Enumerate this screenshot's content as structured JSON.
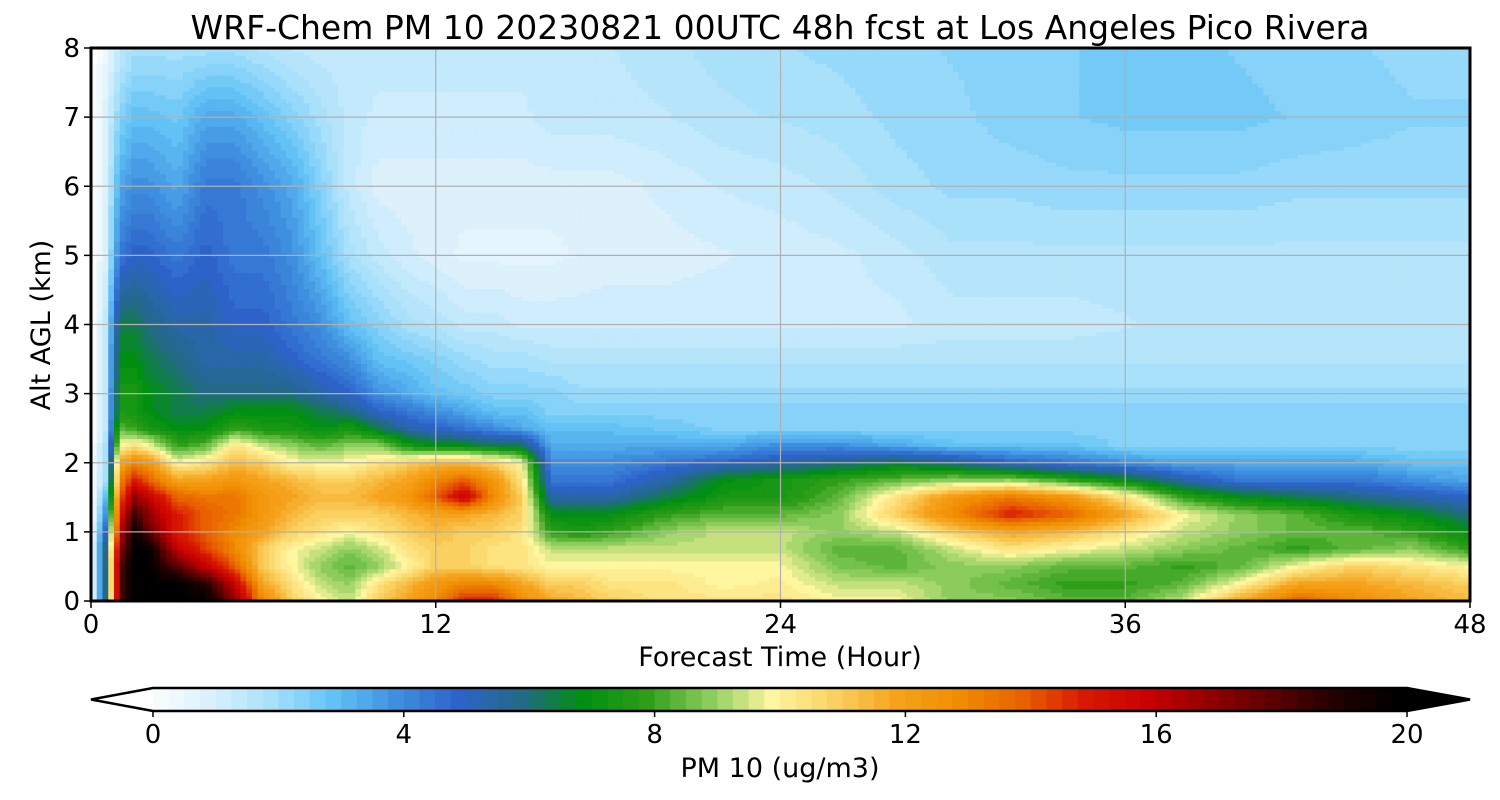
{
  "chart_data": {
    "type": "heatmap",
    "title": "WRF-Chem PM 10  20230821 00UTC 48h fcst at Los Angeles Pico Rivera",
    "xlabel": "Forecast Time (Hour)",
    "ylabel": "Alt AGL (km)",
    "xlim": [
      0,
      48
    ],
    "ylim": [
      0,
      8
    ],
    "xticks": [
      0,
      12,
      24,
      36,
      48
    ],
    "yticks": [
      0,
      1,
      2,
      3,
      4,
      5,
      6,
      7,
      8
    ],
    "grid": true,
    "x": [
      0,
      0.5,
      1,
      1.5,
      2,
      3,
      4,
      5,
      6,
      7,
      8,
      9,
      10,
      11,
      12,
      13,
      14,
      15,
      16,
      17,
      18,
      20,
      22,
      24,
      26,
      28,
      30,
      32,
      34,
      36,
      38,
      40,
      42,
      44,
      46,
      48
    ],
    "y": [
      0,
      0.25,
      0.5,
      0.75,
      1,
      1.25,
      1.5,
      1.75,
      2,
      2.25,
      2.5,
      2.75,
      3,
      3.5,
      4,
      5,
      6,
      7,
      8
    ],
    "z": [
      [
        0,
        6,
        18,
        20,
        20,
        20,
        20,
        17,
        13,
        11,
        10,
        9.5,
        11,
        12,
        13,
        15,
        15,
        13,
        12,
        11.5,
        11,
        10.5,
        10.5,
        10.5,
        10,
        10,
        9,
        9,
        8.5,
        8.5,
        9.5,
        12,
        14,
        13,
        12,
        11.5
      ],
      [
        0,
        6,
        18,
        20,
        20,
        20,
        19,
        16,
        12,
        10.5,
        9.5,
        9,
        10.5,
        11.5,
        12.5,
        13,
        13,
        12,
        11,
        11,
        10.5,
        10.5,
        10,
        10.2,
        9.5,
        9.5,
        9,
        8.5,
        8,
        8,
        8.5,
        10,
        12,
        12,
        11.5,
        11
      ],
      [
        0,
        6,
        18,
        20,
        20,
        18,
        16,
        14,
        11,
        10,
        9,
        8.5,
        9,
        10,
        11,
        11,
        10.5,
        10.5,
        10,
        10,
        10,
        10,
        10,
        10,
        8.8,
        8.5,
        9,
        9,
        8.5,
        8.5,
        8,
        8.5,
        10,
        11,
        10.5,
        10
      ],
      [
        0,
        6,
        17,
        20,
        20,
        16,
        14.5,
        13,
        11,
        10,
        9.5,
        9,
        9.5,
        10.5,
        11,
        11,
        10.5,
        10.5,
        9.5,
        9.5,
        9.5,
        9.5,
        9.5,
        9.5,
        8.5,
        8.5,
        9.5,
        10.5,
        10,
        9.5,
        9,
        8.5,
        8,
        8.5,
        9,
        8
      ],
      [
        0,
        5,
        16,
        19.5,
        18,
        15,
        14,
        13,
        12,
        11,
        10.5,
        10,
        10.5,
        11,
        11.5,
        11,
        11,
        10.5,
        8,
        7.5,
        8,
        9,
        9.5,
        9.5,
        9,
        9.5,
        11,
        12,
        11.5,
        10.5,
        9.5,
        9,
        8.5,
        8.5,
        8,
        7
      ],
      [
        0,
        4,
        15,
        18.5,
        17,
        15,
        14,
        13.5,
        12.5,
        11.5,
        11,
        11,
        11,
        11.5,
        12,
        12,
        11.5,
        11,
        7,
        7,
        7,
        8,
        8.5,
        8.5,
        9,
        11,
        13,
        15,
        14,
        12,
        10,
        9,
        8.5,
        7.5,
        7,
        6
      ],
      [
        0,
        3,
        14,
        17,
        16,
        14,
        13.5,
        13.5,
        12.5,
        12,
        11.5,
        11.5,
        12,
        12.5,
        14,
        16,
        13,
        11,
        5.5,
        5.5,
        5.5,
        6.5,
        7.5,
        7.5,
        8.5,
        10.5,
        12.5,
        13.5,
        12.5,
        10.5,
        8,
        7,
        6.5,
        6,
        5.5,
        5
      ],
      [
        0,
        2,
        13,
        15,
        14,
        12,
        12,
        12.5,
        12,
        11.5,
        11,
        11,
        11.5,
        12,
        13,
        14,
        12.5,
        10.5,
        4.5,
        4.5,
        4.5,
        5.5,
        7,
        7.5,
        8,
        8.5,
        9,
        9,
        8,
        7,
        5.5,
        4.5,
        4.5,
        4.5,
        4,
        3.5
      ],
      [
        0,
        2,
        12,
        13,
        12.5,
        10,
        10.5,
        11.5,
        11,
        10,
        10,
        10,
        10.5,
        11,
        11.5,
        11.5,
        11,
        10,
        4,
        4,
        4,
        4.5,
        5,
        5.5,
        6,
        6.5,
        6,
        5,
        4.5,
        4,
        3.5,
        3.5,
        3.5,
        3.5,
        3,
        3
      ],
      [
        0,
        2,
        10,
        10.5,
        10,
        8,
        8.5,
        10.5,
        9.5,
        9,
        8.5,
        9,
        9,
        7.5,
        7,
        7,
        6.5,
        6.5,
        3.5,
        3.5,
        3.5,
        3.5,
        3.5,
        4,
        4,
        3.5,
        3,
        3,
        3,
        2.5,
        2.5,
        2.5,
        2.5,
        2.5,
        2.5,
        2.5
      ],
      [
        0,
        1.5,
        8.5,
        8,
        7.5,
        7,
        7,
        8,
        7.5,
        7.5,
        7,
        7.5,
        6.5,
        5.5,
        5,
        4.5,
        4,
        3.5,
        3,
        3,
        3,
        2.8,
        2.5,
        2.5,
        2.5,
        2.5,
        2.5,
        2.5,
        2.5,
        2.5,
        2.5,
        2.5,
        2.5,
        2.5,
        2.5,
        2.5
      ],
      [
        0,
        1.5,
        7.5,
        7.5,
        7,
        6.5,
        6.5,
        7,
        7,
        7,
        6.5,
        6,
        5,
        4.5,
        4,
        3.5,
        3,
        3,
        2.5,
        2.5,
        2.5,
        2.5,
        2.5,
        2.5,
        2.5,
        2.5,
        2.5,
        2.5,
        2.5,
        2.5,
        2.5,
        2.5,
        2.5,
        2.5,
        2.5,
        2.5
      ],
      [
        0,
        1.5,
        7.5,
        7.5,
        7,
        6.5,
        6,
        6,
        6,
        6,
        5.5,
        5,
        4,
        3.5,
        3,
        2.8,
        2.5,
        2.5,
        2.5,
        2.2,
        2.2,
        2.2,
        2.2,
        2.2,
        2.2,
        2.2,
        2.2,
        2.2,
        2.2,
        2.2,
        2.2,
        2.2,
        2.2,
        2.2,
        2.2,
        2.2
      ],
      [
        0,
        1.5,
        7,
        7,
        6.5,
        6,
        5.5,
        5.5,
        5.5,
        5,
        4.5,
        4,
        3,
        2.8,
        2.5,
        2.2,
        2,
        2,
        1.8,
        1.8,
        1.8,
        1.8,
        1.8,
        1.8,
        1.8,
        1.8,
        1.8,
        1.8,
        1.8,
        1.8,
        1.8,
        1.8,
        1.8,
        1.8,
        1.8,
        1.8
      ],
      [
        0,
        1.5,
        6.5,
        6.5,
        6,
        5.5,
        5.5,
        5,
        5,
        4.5,
        4,
        3,
        2.5,
        2,
        1.8,
        1.5,
        1.5,
        1.3,
        1.3,
        1.3,
        1.3,
        1.3,
        1.3,
        1.3,
        1.3,
        1.3,
        1.5,
        1.5,
        1.5,
        1.6,
        1.7,
        1.8,
        1.8,
        1.8,
        1.8,
        1.8
      ],
      [
        0,
        1,
        4.5,
        5,
        5,
        4.5,
        5,
        4.5,
        4.5,
        4,
        3,
        2,
        1.5,
        1.2,
        1,
        0.8,
        0.8,
        0.8,
        0.8,
        0.9,
        1,
        1,
        1.1,
        1.2,
        1.3,
        1.5,
        1.8,
        1.8,
        1.8,
        1.8,
        1.8,
        1.8,
        1.8,
        1.8,
        1.8,
        1.8
      ],
      [
        0,
        1,
        3.5,
        4,
        4,
        3.5,
        4.5,
        4.5,
        4,
        3.5,
        2.5,
        1.5,
        1,
        1,
        1,
        1,
        1,
        1,
        1,
        1,
        1,
        1.2,
        1.4,
        1.5,
        1.7,
        2,
        2.2,
        2.2,
        2.3,
        2.3,
        2.3,
        2.3,
        2.2,
        2.2,
        2.2,
        2.2
      ],
      [
        0,
        1,
        2.5,
        3,
        3,
        2.8,
        3.5,
        3.5,
        3,
        2.5,
        2,
        1.5,
        1.3,
        1.3,
        1.3,
        1.3,
        1.3,
        1.3,
        1.5,
        1.5,
        1.5,
        1.6,
        1.8,
        1.9,
        2,
        2.2,
        2.3,
        2.5,
        2.6,
        2.7,
        2.7,
        2.7,
        2.6,
        2.5,
        2.4,
        2.4
      ],
      [
        0,
        0.5,
        1.5,
        2,
        2,
        2,
        2,
        2,
        1.8,
        1.6,
        1.5,
        1.5,
        1.5,
        1.5,
        1.5,
        1.5,
        1.5,
        1.5,
        1.6,
        1.6,
        1.6,
        1.8,
        2,
        2.1,
        2.2,
        2.3,
        2.4,
        2.5,
        2.6,
        2.7,
        2.7,
        2.6,
        2.5,
        2.4,
        2.3,
        2.3
      ]
    ],
    "colorbar": {
      "label": "PM 10  (ug/m3)",
      "range": [
        0,
        20
      ],
      "ticks": [
        0,
        4,
        8,
        12,
        16,
        20
      ],
      "extend": "both",
      "levels": 80
    },
    "colormap_stops": [
      {
        "v": 0,
        "c": "#ffffff"
      },
      {
        "v": 1,
        "c": "#dcf1fc"
      },
      {
        "v": 2,
        "c": "#a9e1fb"
      },
      {
        "v": 3,
        "c": "#62c2f5"
      },
      {
        "v": 4,
        "c": "#3e8fe0"
      },
      {
        "v": 5,
        "c": "#2d63c9"
      },
      {
        "v": 6,
        "c": "#226a86"
      },
      {
        "v": 7,
        "c": "#008f10"
      },
      {
        "v": 8,
        "c": "#2e9e18"
      },
      {
        "v": 9,
        "c": "#8bcc5c"
      },
      {
        "v": 10,
        "c": "#fff6a0"
      },
      {
        "v": 11,
        "c": "#fad160"
      },
      {
        "v": 12,
        "c": "#f6a21c"
      },
      {
        "v": 13,
        "c": "#f08c00"
      },
      {
        "v": 14,
        "c": "#e86000"
      },
      {
        "v": 15,
        "c": "#d81800"
      },
      {
        "v": 16,
        "c": "#c80000"
      },
      {
        "v": 17,
        "c": "#900000"
      },
      {
        "v": 18,
        "c": "#5a0000"
      },
      {
        "v": 19,
        "c": "#200000"
      },
      {
        "v": 20,
        "c": "#000000"
      }
    ]
  }
}
